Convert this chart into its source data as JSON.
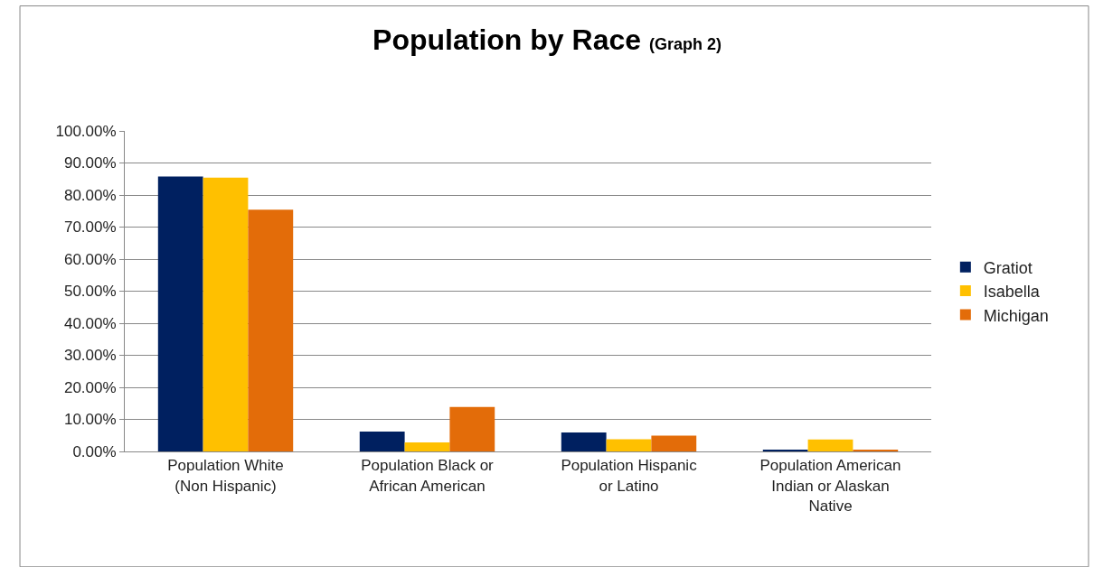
{
  "chart_data": {
    "type": "bar",
    "title": "Population by Race",
    "subtitle": "(Graph 2)",
    "categories": [
      "Population White (Non Hispanic)",
      "Population Black or African American",
      "Population Hispanic or Latino",
      "Population American Indian or Alaskan Native"
    ],
    "series": [
      {
        "name": "Gratiot",
        "color": "#002060",
        "values": [
          85.8,
          6.2,
          5.9,
          0.5
        ]
      },
      {
        "name": "Isabella",
        "color": "#ffc000",
        "values": [
          85.4,
          2.8,
          3.8,
          3.7
        ]
      },
      {
        "name": "Michigan",
        "color": "#e36c09",
        "values": [
          75.4,
          13.9,
          4.9,
          0.5
        ]
      }
    ],
    "ylim": [
      0,
      100
    ],
    "yticks": [
      {
        "value": 0,
        "label": "0.00%"
      },
      {
        "value": 10,
        "label": "10.00%"
      },
      {
        "value": 20,
        "label": "20.00%"
      },
      {
        "value": 30,
        "label": "30.00%"
      },
      {
        "value": 40,
        "label": "40.00%"
      },
      {
        "value": 50,
        "label": "50.00%"
      },
      {
        "value": 60,
        "label": "60.00%"
      },
      {
        "value": 70,
        "label": "70.00%"
      },
      {
        "value": 80,
        "label": "80.00%"
      },
      {
        "value": 90,
        "label": "90.00%"
      },
      {
        "value": 100,
        "label": "100.00%"
      }
    ],
    "grid": "y",
    "legend": "right"
  }
}
